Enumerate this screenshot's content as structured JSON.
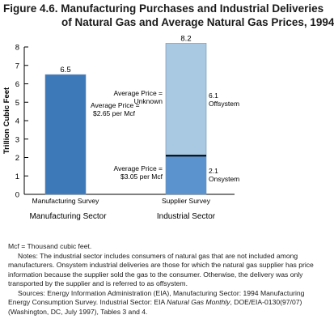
{
  "figure": {
    "title_line1": "Figure 4.6.  Manufacturing Purchases and Industrial Deliveries",
    "title_line2": "of Natural Gas and Average Natural Gas Prices, 1994"
  },
  "chart_data": {
    "type": "bar",
    "ylabel": "Trillion Cubic Feet",
    "ylim": [
      0,
      8
    ],
    "yticks": [
      "0",
      "1",
      "2",
      "3",
      "4",
      "5",
      "6",
      "7",
      "8"
    ],
    "categories": [
      "Manufacturing Survey",
      "Supplier Survey"
    ],
    "groups": [
      "Manufacturing Sector",
      "Industrial Sector"
    ],
    "bars": [
      {
        "category": "Manufacturing Survey",
        "total_label": "6.5",
        "segments": [
          {
            "value": 6.5,
            "color": "#3d78b8",
            "label": "",
            "price_line1": "Average Price =",
            "price_line2": "$2.65 per Mcf"
          }
        ]
      },
      {
        "category": "Supplier Survey",
        "total_label": "8.2",
        "segments": [
          {
            "value": 2.1,
            "color": "#5b93cf",
            "label": "2.1",
            "sub": "Onsystem",
            "price_line1": "Average Price =",
            "price_line2": "$3.05 per Mcf"
          },
          {
            "value": 6.1,
            "color": "#a9c8e2",
            "label": "6.1",
            "sub": "Offsystem",
            "price_line1": "Average Price =",
            "price_line2": "Unknown"
          }
        ]
      }
    ],
    "grid": false,
    "legend": "none"
  },
  "notes": {
    "mcf": "Mcf = Thousand cubic feet.",
    "notes": "Notes:  The industrial sector includes consumers of natural gas that are not included among manufacturers.  Onsystem industrial deliveries are those for which the natural gas supplier has price information because the supplier sold the gas to the consumer.  Otherwise, the delivery was only transported by the supplier and is referred to as offsystem.",
    "sources_prefix": "Sources:  Energy Information Administration (EIA), Manufacturing Sector: 1994 Manufacturing Energy Consumption Survey.  Industrial Sector: EIA ",
    "sources_italic": "Natural Gas Monthly",
    "sources_suffix": ", DOE/EIA-0130(97/07) (Washington, DC, July 1997), Tables 3 and 4."
  }
}
